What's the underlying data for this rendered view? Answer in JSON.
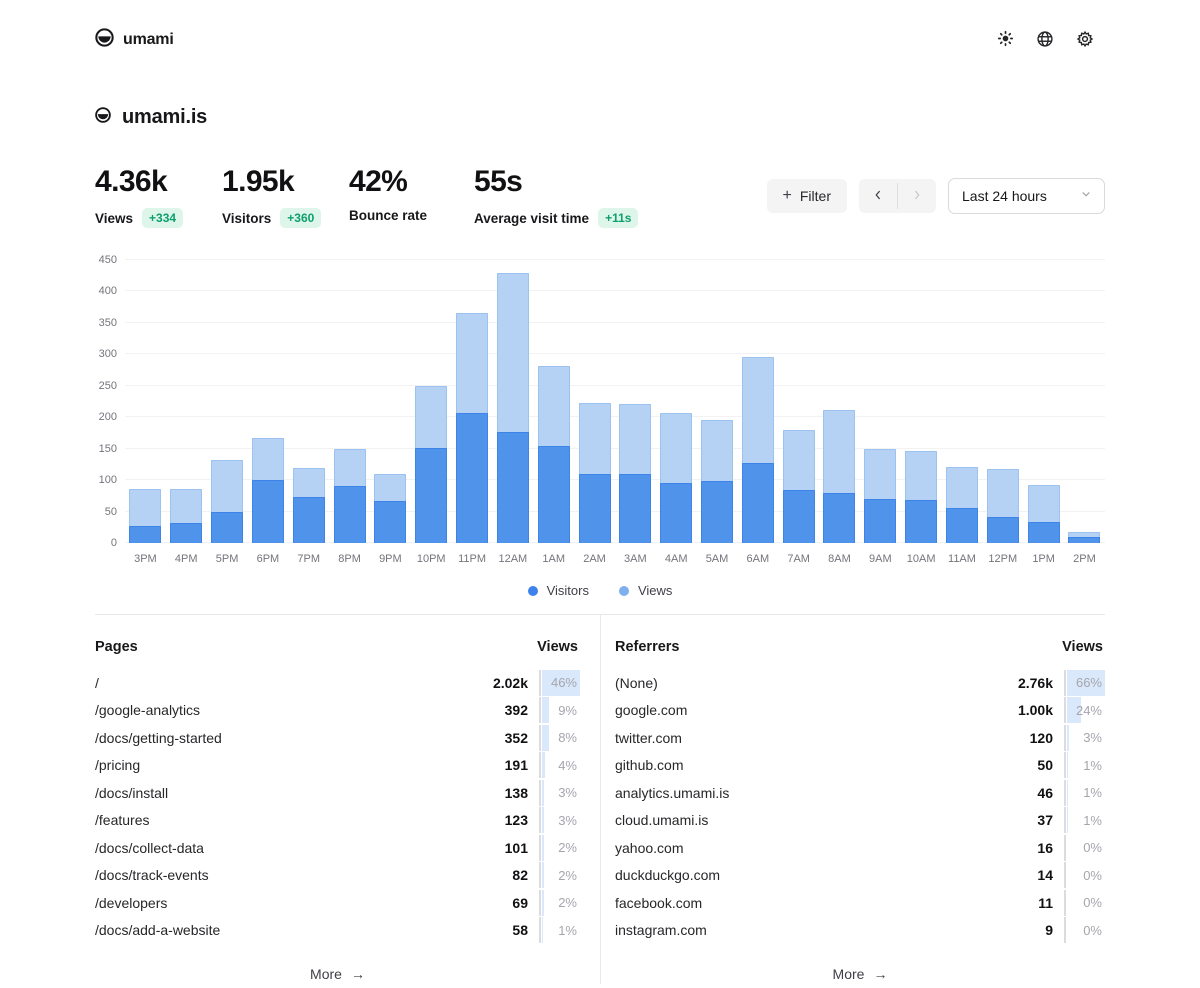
{
  "brand": {
    "name": "umami"
  },
  "header_icons": [
    {
      "name": "sun-icon"
    },
    {
      "name": "globe-icon"
    },
    {
      "name": "gear-icon"
    }
  ],
  "site": {
    "name": "umami.is"
  },
  "metrics": [
    {
      "value": "4.36k",
      "label": "Views",
      "change": "+334"
    },
    {
      "value": "1.95k",
      "label": "Visitors",
      "change": "+360"
    },
    {
      "value": "42%",
      "label": "Bounce rate",
      "change": null
    },
    {
      "value": "55s",
      "label": "Average visit time",
      "change": "+11s"
    }
  ],
  "toolbar": {
    "filter_label": "Filter",
    "prev_arrow": "‹",
    "next_arrow": "›",
    "date_range": "Last 24 hours"
  },
  "chart_data": {
    "type": "bar",
    "overlaid": true,
    "categories": [
      "3PM",
      "4PM",
      "5PM",
      "6PM",
      "7PM",
      "8PM",
      "9PM",
      "10PM",
      "11PM",
      "12AM",
      "1AM",
      "2AM",
      "3AM",
      "4AM",
      "5AM",
      "6AM",
      "7AM",
      "8AM",
      "9AM",
      "10AM",
      "11AM",
      "12PM",
      "1PM",
      "2PM"
    ],
    "series": [
      {
        "name": "Views",
        "values": [
          86,
          86,
          132,
          167,
          120,
          150,
          110,
          250,
          366,
          429,
          282,
          222,
          221,
          206,
          196,
          295,
          180,
          211,
          150,
          146,
          121,
          117,
          93,
          18
        ]
      },
      {
        "name": "Visitors",
        "values": [
          27,
          32,
          50,
          100,
          73,
          91,
          67,
          151,
          207,
          176,
          155,
          109,
          110,
          95,
          98,
          128,
          85,
          79,
          70,
          69,
          56,
          41,
          33,
          9
        ]
      }
    ],
    "ylim": [
      0,
      450
    ],
    "yticks": [
      0,
      50,
      100,
      150,
      200,
      250,
      300,
      350,
      400,
      450
    ],
    "grid": true,
    "legend": [
      {
        "label": "Visitors",
        "color": "#3e82ec"
      },
      {
        "label": "Views",
        "color": "#7eafee"
      }
    ],
    "legend_position": "bottom"
  },
  "tables": {
    "pages": {
      "title": "Pages",
      "views_header": "Views",
      "more_label": "More",
      "more_arrow": "→",
      "rows": [
        {
          "label": "/",
          "views": "2.02k",
          "pct": 46,
          "pct_label": "46%"
        },
        {
          "label": "/google-analytics",
          "views": "392",
          "pct": 9,
          "pct_label": "9%"
        },
        {
          "label": "/docs/getting-started",
          "views": "352",
          "pct": 8,
          "pct_label": "8%"
        },
        {
          "label": "/pricing",
          "views": "191",
          "pct": 4,
          "pct_label": "4%"
        },
        {
          "label": "/docs/install",
          "views": "138",
          "pct": 3,
          "pct_label": "3%"
        },
        {
          "label": "/features",
          "views": "123",
          "pct": 3,
          "pct_label": "3%"
        },
        {
          "label": "/docs/collect-data",
          "views": "101",
          "pct": 2,
          "pct_label": "2%"
        },
        {
          "label": "/docs/track-events",
          "views": "82",
          "pct": 2,
          "pct_label": "2%"
        },
        {
          "label": "/developers",
          "views": "69",
          "pct": 2,
          "pct_label": "2%"
        },
        {
          "label": "/docs/add-a-website",
          "views": "58",
          "pct": 1,
          "pct_label": "1%"
        }
      ]
    },
    "referrers": {
      "title": "Referrers",
      "views_header": "Views",
      "more_label": "More",
      "more_arrow": "→",
      "rows": [
        {
          "label": "(None)",
          "views": "2.76k",
          "pct": 66,
          "pct_label": "66%"
        },
        {
          "label": "google.com",
          "views": "1.00k",
          "pct": 24,
          "pct_label": "24%"
        },
        {
          "label": "twitter.com",
          "views": "120",
          "pct": 3,
          "pct_label": "3%"
        },
        {
          "label": "github.com",
          "views": "50",
          "pct": 1,
          "pct_label": "1%"
        },
        {
          "label": "analytics.umami.is",
          "views": "46",
          "pct": 1,
          "pct_label": "1%"
        },
        {
          "label": "cloud.umami.is",
          "views": "37",
          "pct": 1,
          "pct_label": "1%"
        },
        {
          "label": "yahoo.com",
          "views": "16",
          "pct": 0,
          "pct_label": "0%"
        },
        {
          "label": "duckduckgo.com",
          "views": "14",
          "pct": 0,
          "pct_label": "0%"
        },
        {
          "label": "facebook.com",
          "views": "11",
          "pct": 0,
          "pct_label": "0%"
        },
        {
          "label": "instagram.com",
          "views": "9",
          "pct": 0,
          "pct_label": "0%"
        }
      ]
    }
  },
  "colors": {
    "visitors_bar": "#4f93ea",
    "visitors_bar_border": "#3d84e8",
    "views_bar": "#b5d2f4",
    "views_bar_border": "#9cc3f0",
    "badge_bg": "#ddf6e9",
    "badge_text": "#0e9f6e",
    "pct_fill": "#d9e8fa",
    "nav_enabled": "#3f3f46",
    "nav_disabled": "#c8c8cd"
  }
}
